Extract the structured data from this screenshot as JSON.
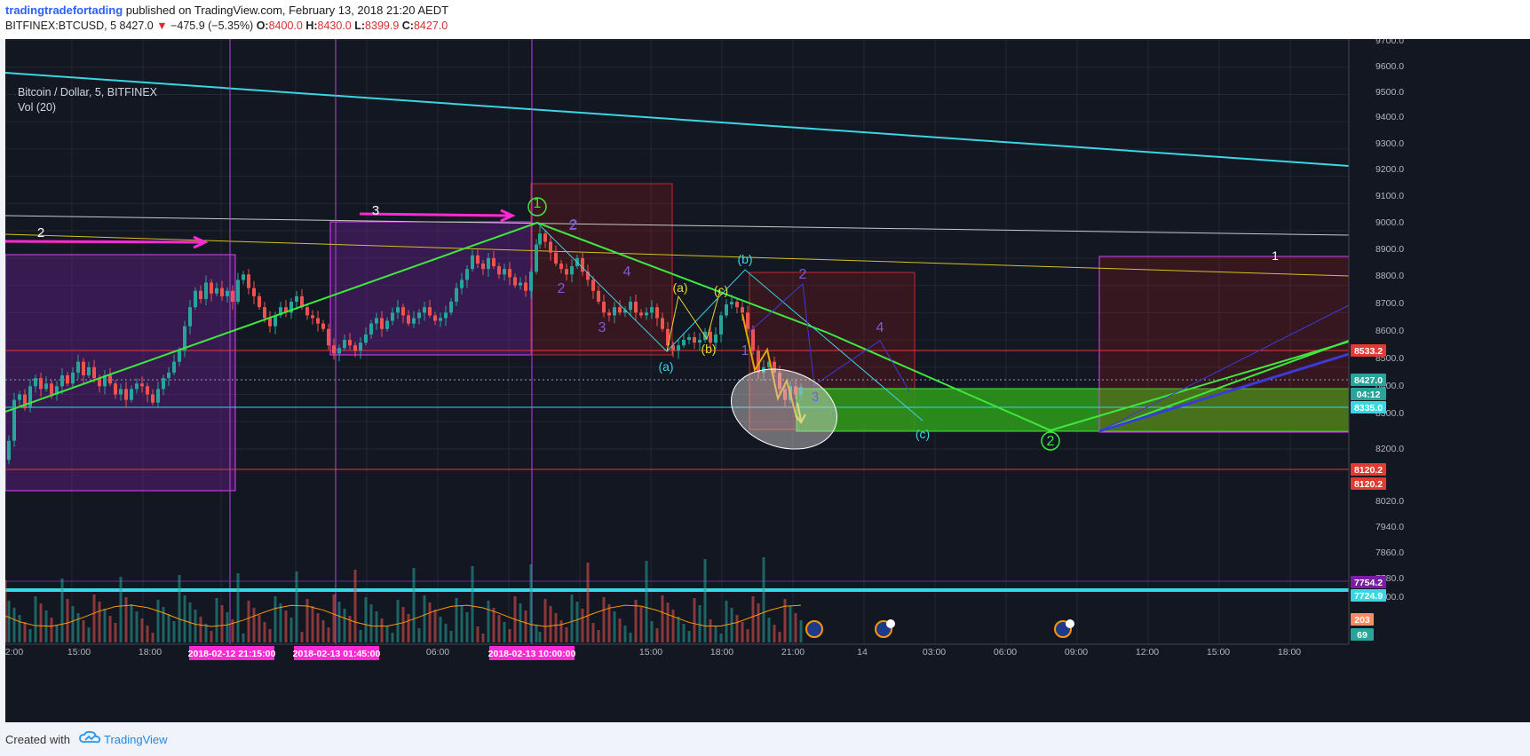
{
  "header": {
    "author": "tradingtradefortading",
    "published_text": "published on TradingView.com, February 13, 2018 21:20 AEDT",
    "symbol": "BITFINEX:BTCUSD, 5",
    "last": "8427.0",
    "change": "−475.9 (−5.35%)",
    "open_label": "O:",
    "open": "8400.0",
    "high_label": "H:",
    "high": "8430.0",
    "low_label": "L:",
    "low": "8399.9",
    "close_label": "C:",
    "close": "8427.0"
  },
  "legend": {
    "title": "Bitcoin / Dollar, 5, BITFINEX",
    "indicator": "Vol (20)"
  },
  "footer": {
    "created_with": "Created with",
    "brand": "TradingView"
  },
  "colors": {
    "background": "#131722",
    "up": "#26a69a",
    "down": "#ef5350",
    "cyan_trend": "#3ad6e4",
    "green_wave": "#3ee83e",
    "magenta": "#ff2ad4",
    "purple_box": "#9c27b0",
    "red_box": "#b71c1c",
    "blue_line": "#3b3bd9"
  },
  "chart_data": {
    "type": "candlestick",
    "title": "Bitcoin / Dollar, 5, BITFINEX",
    "indicator": "Vol (20)",
    "price_axis_ticks": [
      "9700.0",
      "9600.0",
      "9500.0",
      "9400.0",
      "9300.0",
      "9200.0",
      "9100.0",
      "9000.0",
      "8900.0",
      "8800.0",
      "8700.0",
      "8600.0",
      "8500.0",
      "8400.0",
      "8300.0",
      "8200.0",
      "8120.2",
      "8020.0",
      "7940.0",
      "7860.0",
      "7780.0",
      "7700.0"
    ],
    "price_labels": [
      {
        "text": "8533.2",
        "color": "#e53935"
      },
      {
        "text": "8427.0",
        "color": "#26a69a"
      },
      {
        "text": "04:12",
        "color": "#26a69a"
      },
      {
        "text": "8335.0",
        "color": "#3ad6e4"
      },
      {
        "text": "8120.2",
        "color": "#e53935"
      },
      {
        "text": "8120.2",
        "color": "#e53935"
      },
      {
        "text": "7754.2",
        "color": "#7b1fa2"
      },
      {
        "text": "7724.9",
        "color": "#3ad6e4"
      },
      {
        "text": "203",
        "color": "#ff8a65"
      },
      {
        "text": "69",
        "color": "#26a69a"
      }
    ],
    "time_axis": [
      "2:00",
      "15:00",
      "18:00",
      "06:00",
      "15:00",
      "18:00",
      "21:00",
      "14",
      "03:00",
      "06:00",
      "09:00",
      "12:00",
      "15:00",
      "18:00"
    ],
    "time_highlights": [
      "2018-02-12 21:15:00",
      "2018-02-13 01:45:00",
      "2018-02-13 10:00:00"
    ],
    "current_price": 8427.0,
    "wave_labels": [
      "2",
      "3",
      "1",
      "2",
      "1",
      "2",
      "3",
      "4",
      "(a)",
      "(b)",
      "(c)",
      "(a)",
      "(b)",
      "1",
      "2",
      "3",
      "4",
      "(c)",
      "1",
      "2"
    ],
    "price_path": [
      [
        0,
        8160
      ],
      [
        4,
        8230
      ],
      [
        10,
        8380
      ],
      [
        16,
        8400
      ],
      [
        22,
        8350
      ],
      [
        28,
        8430
      ],
      [
        34,
        8460
      ],
      [
        40,
        8420
      ],
      [
        46,
        8440
      ],
      [
        52,
        8400
      ],
      [
        58,
        8430
      ],
      [
        64,
        8470
      ],
      [
        70,
        8440
      ],
      [
        76,
        8480
      ],
      [
        82,
        8520
      ],
      [
        88,
        8470
      ],
      [
        94,
        8500
      ],
      [
        100,
        8460
      ],
      [
        106,
        8430
      ],
      [
        112,
        8470
      ],
      [
        118,
        8440
      ],
      [
        124,
        8400
      ],
      [
        130,
        8420
      ],
      [
        136,
        8380
      ],
      [
        142,
        8420
      ],
      [
        148,
        8440
      ],
      [
        154,
        8430
      ],
      [
        160,
        8400
      ],
      [
        166,
        8370
      ],
      [
        172,
        8420
      ],
      [
        178,
        8460
      ],
      [
        184,
        8480
      ],
      [
        190,
        8520
      ],
      [
        196,
        8560
      ],
      [
        202,
        8650
      ],
      [
        208,
        8720
      ],
      [
        214,
        8780
      ],
      [
        220,
        8750
      ],
      [
        226,
        8810
      ],
      [
        232,
        8770
      ],
      [
        238,
        8790
      ],
      [
        244,
        8760
      ],
      [
        250,
        8780
      ],
      [
        256,
        8740
      ],
      [
        262,
        8820
      ],
      [
        268,
        8840
      ],
      [
        274,
        8790
      ],
      [
        280,
        8760
      ],
      [
        286,
        8720
      ],
      [
        292,
        8680
      ],
      [
        298,
        8650
      ],
      [
        304,
        8690
      ],
      [
        310,
        8720
      ],
      [
        316,
        8700
      ],
      [
        322,
        8740
      ],
      [
        328,
        8760
      ],
      [
        334,
        8720
      ],
      [
        340,
        8690
      ],
      [
        346,
        8680
      ],
      [
        352,
        8660
      ],
      [
        358,
        8640
      ],
      [
        364,
        8580
      ],
      [
        370,
        8550
      ],
      [
        376,
        8570
      ],
      [
        382,
        8600
      ],
      [
        388,
        8580
      ],
      [
        394,
        8560
      ],
      [
        400,
        8590
      ],
      [
        406,
        8620
      ],
      [
        412,
        8660
      ],
      [
        418,
        8680
      ],
      [
        424,
        8640
      ],
      [
        430,
        8670
      ],
      [
        436,
        8700
      ],
      [
        442,
        8720
      ],
      [
        448,
        8690
      ],
      [
        454,
        8660
      ],
      [
        460,
        8680
      ],
      [
        466,
        8700
      ],
      [
        472,
        8720
      ],
      [
        478,
        8690
      ],
      [
        484,
        8670
      ],
      [
        490,
        8680
      ],
      [
        496,
        8700
      ],
      [
        502,
        8740
      ],
      [
        508,
        8790
      ],
      [
        514,
        8820
      ],
      [
        520,
        8860
      ],
      [
        526,
        8910
      ],
      [
        532,
        8880
      ],
      [
        538,
        8860
      ],
      [
        544,
        8900
      ],
      [
        550,
        8870
      ],
      [
        556,
        8840
      ],
      [
        562,
        8860
      ],
      [
        568,
        8830
      ],
      [
        574,
        8800
      ],
      [
        580,
        8810
      ],
      [
        586,
        8780
      ],
      [
        592,
        8850
      ],
      [
        598,
        8950
      ],
      [
        602,
        8990
      ],
      [
        608,
        8960
      ],
      [
        614,
        8920
      ],
      [
        620,
        8880
      ],
      [
        626,
        8860
      ],
      [
        632,
        8840
      ],
      [
        638,
        8870
      ],
      [
        644,
        8900
      ],
      [
        650,
        8850
      ],
      [
        656,
        8820
      ],
      [
        662,
        8780
      ],
      [
        668,
        8740
      ],
      [
        674,
        8700
      ],
      [
        680,
        8690
      ],
      [
        686,
        8720
      ],
      [
        692,
        8700
      ],
      [
        698,
        8710
      ],
      [
        704,
        8740
      ],
      [
        710,
        8700
      ],
      [
        716,
        8690
      ],
      [
        722,
        8700
      ],
      [
        728,
        8720
      ],
      [
        734,
        8680
      ],
      [
        740,
        8640
      ],
      [
        746,
        8580
      ],
      [
        752,
        8560
      ],
      [
        758,
        8580
      ],
      [
        764,
        8600
      ],
      [
        770,
        8610
      ],
      [
        776,
        8590
      ],
      [
        782,
        8600
      ],
      [
        788,
        8630
      ],
      [
        794,
        8590
      ],
      [
        800,
        8620
      ],
      [
        806,
        8690
      ],
      [
        812,
        8730
      ],
      [
        818,
        8740
      ],
      [
        824,
        8720
      ],
      [
        830,
        8700
      ],
      [
        836,
        8640
      ],
      [
        842,
        8560
      ],
      [
        848,
        8480
      ],
      [
        854,
        8500
      ],
      [
        860,
        8520
      ],
      [
        866,
        8480
      ],
      [
        872,
        8420
      ],
      [
        878,
        8380
      ],
      [
        884,
        8430
      ],
      [
        890,
        8400
      ],
      [
        896,
        8427
      ]
    ]
  }
}
